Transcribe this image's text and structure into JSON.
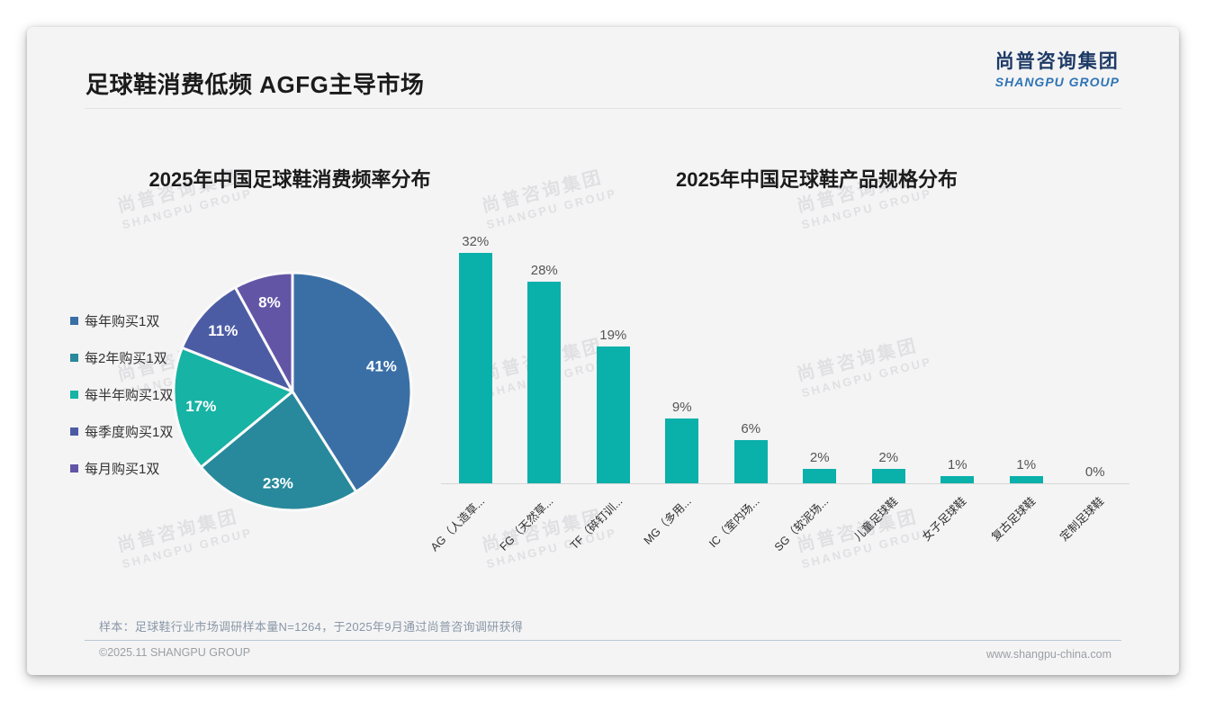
{
  "header": {
    "title": "足球鞋消费低频 AGFG主导市场",
    "logo": {
      "cn": "尚普咨询集团",
      "en": "SHANGPU GROUP"
    }
  },
  "watermark": {
    "cn": "尚普咨询集团",
    "en": "SHANGPU GROUP"
  },
  "chart_data": [
    {
      "type": "pie",
      "title": "2025年中国足球鞋消费频率分布",
      "labels": [
        "每年购买1双",
        "每2年购买1双",
        "每半年购买1双",
        "每季度购买1双",
        "每月购买1双"
      ],
      "values": [
        41,
        23,
        17,
        11,
        8
      ],
      "value_labels": [
        "41%",
        "23%",
        "17%",
        "11%",
        "8%"
      ],
      "colors": [
        "#3a6fa6",
        "#27899b",
        "#17b3a4",
        "#4c5ca4",
        "#6355a6"
      ],
      "legend_position": "left",
      "start_angle": "12-oclock",
      "direction": "clockwise"
    },
    {
      "type": "bar",
      "title": "2025年中国足球鞋产品规格分布",
      "categories": [
        "AG（人造草...",
        "FG（天然草...",
        "TF（碎钉训...",
        "MG（多用...",
        "IC（室内场...",
        "SG（软泥场...",
        "儿童足球鞋",
        "女子足球鞋",
        "复古足球鞋",
        "定制足球鞋"
      ],
      "values": [
        32,
        28,
        19,
        9,
        6,
        2,
        2,
        1,
        1,
        0
      ],
      "value_labels": [
        "32%",
        "28%",
        "19%",
        "9%",
        "6%",
        "2%",
        "2%",
        "1%",
        "1%",
        "0%"
      ],
      "bar_color": "#0ab0aa",
      "ylim": [
        0,
        35
      ],
      "grid": false,
      "xlabel_rotation_deg": -45
    }
  ],
  "footer": {
    "note": "样本：足球鞋行业市场调研样本量N=1264，于2025年9月通过尚普咨询调研获得",
    "copyright": "©2025.11 SHANGPU GROUP",
    "website": "www.shangpu-china.com"
  }
}
